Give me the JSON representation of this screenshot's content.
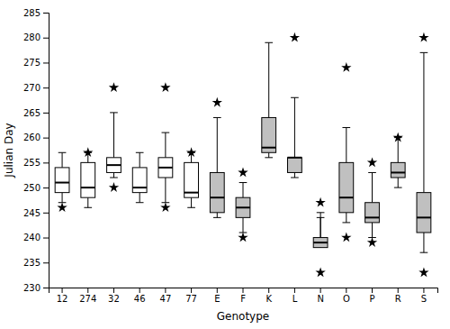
{
  "chart_data": {
    "type": "box",
    "xlabel": "Genotype",
    "ylabel": "Julian Day",
    "categories": [
      "12",
      "274",
      "32",
      "46",
      "47",
      "77",
      "E",
      "F",
      "K",
      "L",
      "N",
      "O",
      "P",
      "R",
      "S"
    ],
    "colors": [
      "#ffffff",
      "#ffffff",
      "#ffffff",
      "#ffffff",
      "#ffffff",
      "#ffffff",
      "#c0c0c0",
      "#c0c0c0",
      "#c0c0c0",
      "#c0c0c0",
      "#c0c0c0",
      "#c0c0c0",
      "#c0c0c0",
      "#c0c0c0",
      "#c0c0c0"
    ],
    "marker": "star",
    "boxes": [
      {
        "whislo": 247,
        "q1": 249,
        "med": 251,
        "q3": 254,
        "whishi": 257,
        "fliers": [
          246
        ]
      },
      {
        "whislo": 246,
        "q1": 248,
        "med": 250,
        "q3": 255,
        "whishi": 257,
        "fliers": [
          257
        ]
      },
      {
        "whislo": 252,
        "q1": 253,
        "med": 254.5,
        "q3": 256,
        "whishi": 265,
        "fliers": [
          250,
          270
        ]
      },
      {
        "whislo": 247,
        "q1": 249,
        "med": 250,
        "q3": 254,
        "whishi": 257,
        "fliers": []
      },
      {
        "whislo": 247,
        "q1": 252,
        "med": 254,
        "q3": 256,
        "whishi": 261,
        "fliers": [
          246,
          270
        ]
      },
      {
        "whislo": 246,
        "q1": 248,
        "med": 249,
        "q3": 255,
        "whishi": 257,
        "fliers": [
          257
        ]
      },
      {
        "whislo": 244,
        "q1": 245,
        "med": 248,
        "q3": 253,
        "whishi": 264,
        "fliers": [
          267
        ]
      },
      {
        "whislo": 241,
        "q1": 244,
        "med": 246,
        "q3": 248,
        "whishi": 251,
        "fliers": [
          240,
          253
        ]
      },
      {
        "whislo": 256,
        "q1": 257,
        "med": 258,
        "q3": 264,
        "whishi": 279,
        "fliers": []
      },
      {
        "whislo": 252,
        "q1": 253,
        "med": 256,
        "q3": 256,
        "whishi": 268,
        "fliers": [
          280
        ]
      },
      {
        "whislo": 244,
        "q1": 238,
        "med": 239,
        "q3": 240,
        "whishi": 245,
        "fliers": [
          233,
          247
        ]
      },
      {
        "whislo": 243,
        "q1": 245,
        "med": 248,
        "q3": 255,
        "whishi": 262,
        "fliers": [
          240,
          274
        ]
      },
      {
        "whislo": 240,
        "q1": 243,
        "med": 244,
        "q3": 247,
        "whishi": 253,
        "fliers": [
          239,
          255
        ]
      },
      {
        "whislo": 250,
        "q1": 252,
        "med": 253,
        "q3": 255,
        "whishi": 260,
        "fliers": [
          260
        ]
      },
      {
        "whislo": 237,
        "q1": 241,
        "med": 244,
        "q3": 249,
        "whishi": 277,
        "fliers": [
          233,
          280
        ]
      }
    ],
    "ylim": [
      230,
      285
    ],
    "yticks": [
      230,
      235,
      240,
      245,
      250,
      255,
      260,
      265,
      270,
      275,
      280,
      285
    ]
  }
}
